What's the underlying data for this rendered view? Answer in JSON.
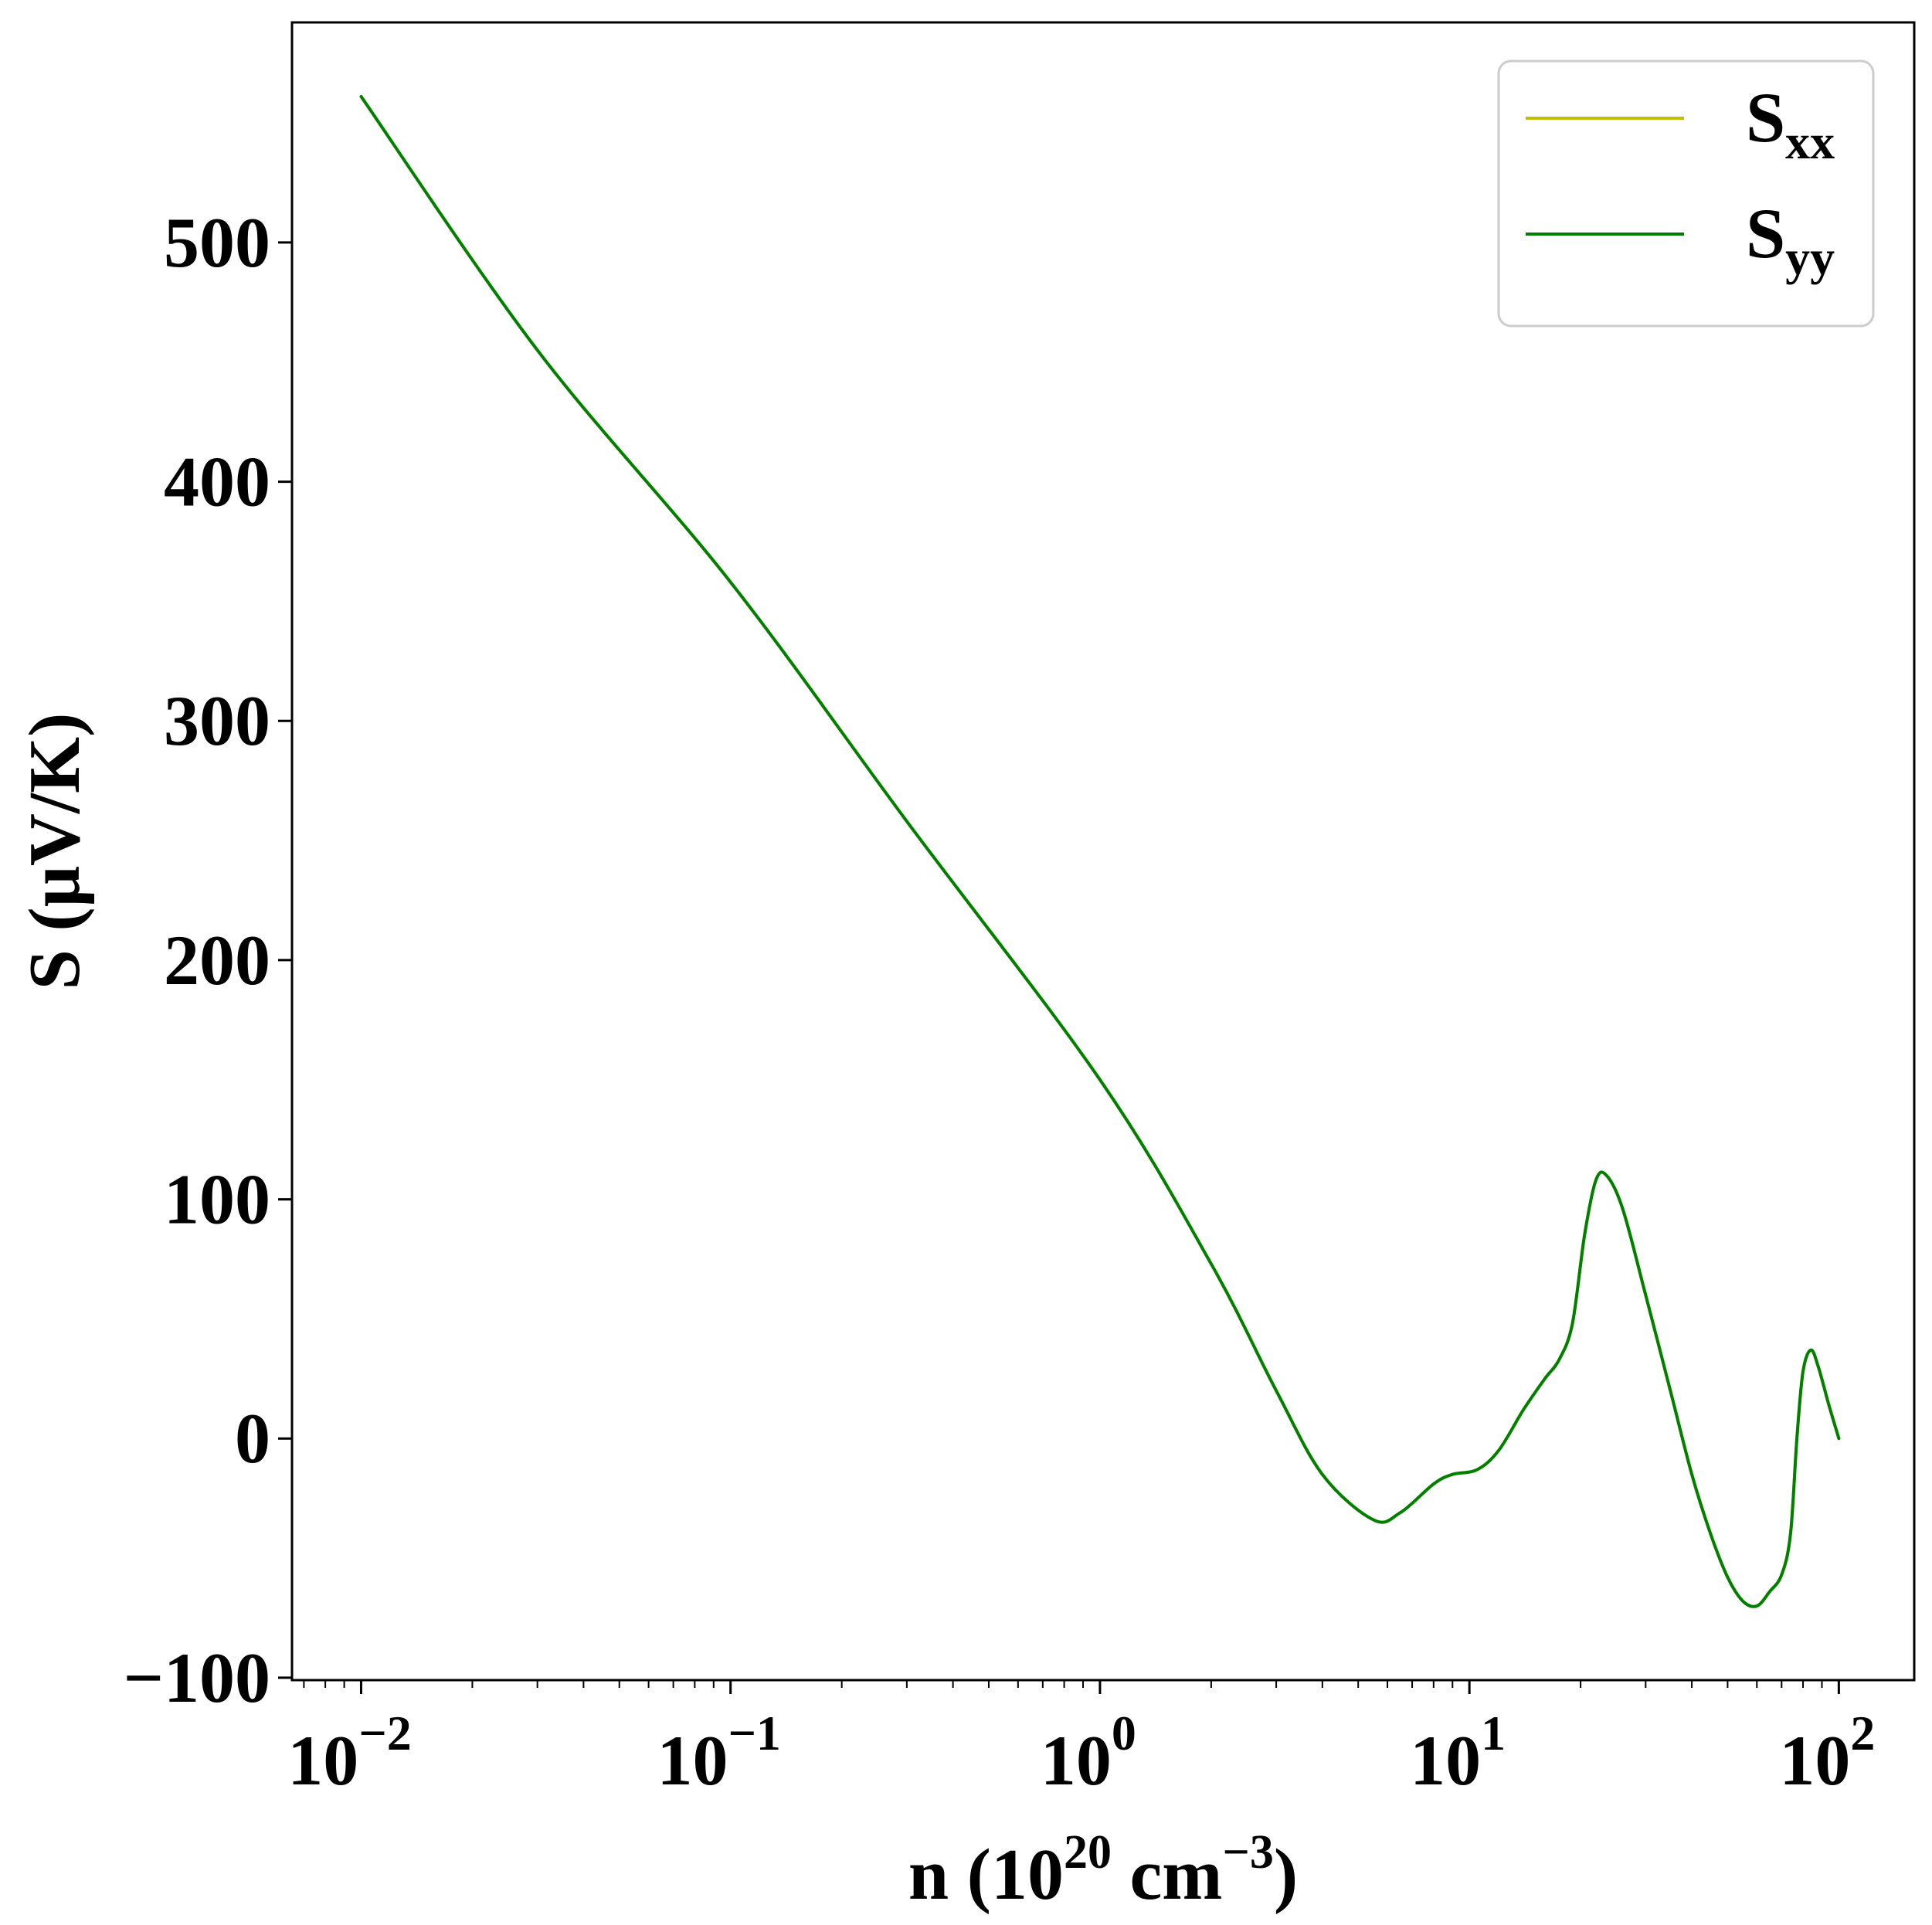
{
  "chart_data": {
    "type": "line",
    "xscale": "log",
    "xlim": [
      0.0065,
      160
    ],
    "ylim": [
      -101,
      592
    ],
    "grid": false,
    "legend_placement": "top-right",
    "xlabel": {
      "prefix": "n (10",
      "exp1": "20",
      "mid": " cm",
      "exp2": "−3",
      "suffix": ")"
    },
    "ylabel": "S (μV/K)",
    "x_ticks": [
      {
        "value": 0.01,
        "base": "10",
        "exp": "−2"
      },
      {
        "value": 0.1,
        "base": "10",
        "exp": "−1"
      },
      {
        "value": 1,
        "base": "10",
        "exp": "0"
      },
      {
        "value": 10,
        "base": "10",
        "exp": "1"
      },
      {
        "value": 100,
        "base": "10",
        "exp": "2"
      }
    ],
    "y_ticks": [
      {
        "value": -100,
        "label": "−100"
      },
      {
        "value": 0,
        "label": "0"
      },
      {
        "value": 100,
        "label": "100"
      },
      {
        "value": 200,
        "label": "200"
      },
      {
        "value": 300,
        "label": "300"
      },
      {
        "value": 400,
        "label": "400"
      },
      {
        "value": 500,
        "label": "500"
      }
    ],
    "series": [
      {
        "name": "S",
        "sub": "xx",
        "color": "#bfbf00",
        "x": [
          0.01,
          0.03,
          0.1,
          0.3,
          1.0,
          2.0,
          3.0,
          4.0,
          5.5,
          6.5,
          8.0,
          9.0,
          10.5,
          12.0,
          14.0,
          16.0,
          17.5,
          19.0,
          20.5,
          22.0,
          23.5,
          26.0,
          30.0,
          35.0,
          40.0,
          45.0,
          50.0,
          55.0,
          60.0,
          65.0,
          70.0,
          74.0,
          77.0,
          80.0,
          84.0,
          88.0,
          94.0,
          100.0
        ],
        "y": [
          561,
          455,
          358,
          258,
          150,
          73,
          20,
          -15,
          -34,
          -31,
          -19,
          -15,
          -13,
          -5,
          12,
          25,
          33,
          48,
          85,
          108,
          110,
          96,
          60,
          20,
          -15,
          -40,
          -58,
          -68,
          -70,
          -64,
          -57,
          -40,
          0,
          28,
          37,
          30,
          14,
          0
        ]
      },
      {
        "name": "S",
        "sub": "yy",
        "color": "#008000",
        "x": [
          0.01,
          0.03,
          0.1,
          0.3,
          1.0,
          2.0,
          3.0,
          4.0,
          5.5,
          6.5,
          8.0,
          9.0,
          10.5,
          12.0,
          14.0,
          16.0,
          17.5,
          19.0,
          20.5,
          22.0,
          23.5,
          26.0,
          30.0,
          35.0,
          40.0,
          45.0,
          50.0,
          55.0,
          60.0,
          65.0,
          70.0,
          74.0,
          77.0,
          80.0,
          84.0,
          88.0,
          94.0,
          100.0
        ],
        "y": [
          561,
          455,
          358,
          258,
          150,
          73,
          20,
          -15,
          -34,
          -31,
          -19,
          -15,
          -13,
          -5,
          12,
          25,
          33,
          48,
          85,
          108,
          110,
          96,
          60,
          20,
          -15,
          -40,
          -58,
          -68,
          -70,
          -64,
          -57,
          -40,
          0,
          28,
          37,
          30,
          14,
          0
        ]
      }
    ]
  }
}
